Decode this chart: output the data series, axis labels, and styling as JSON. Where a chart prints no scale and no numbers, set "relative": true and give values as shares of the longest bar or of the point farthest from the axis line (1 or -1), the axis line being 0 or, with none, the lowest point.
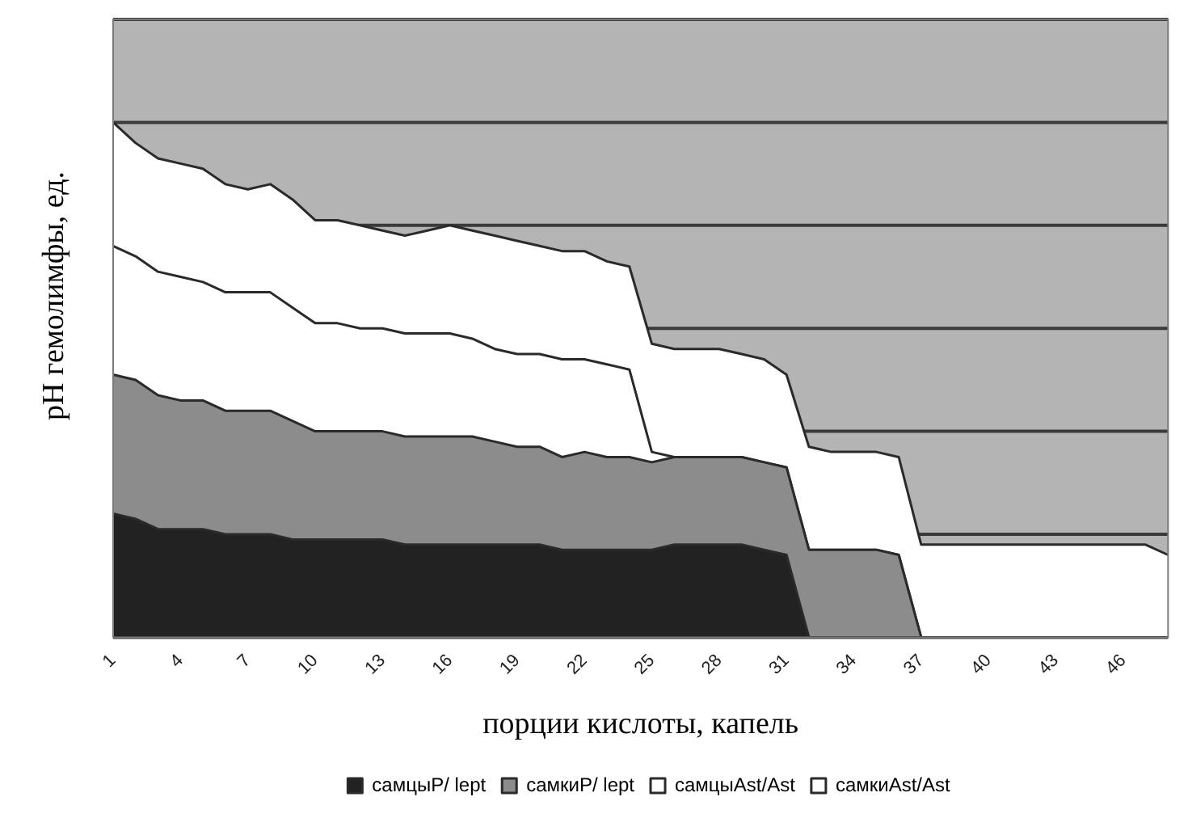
{
  "chart_data": {
    "type": "area",
    "xlabel": "порции кислоты, капель",
    "ylabel": "pH гемолимфы, ед.",
    "categories": [
      "1",
      null,
      null,
      "4",
      null,
      null,
      "7",
      null,
      null,
      "10",
      null,
      null,
      "13",
      null,
      null,
      "16",
      null,
      null,
      "19",
      null,
      null,
      "22",
      null,
      null,
      "25",
      null,
      null,
      "28",
      null,
      null,
      "31",
      null,
      null,
      "34",
      null,
      null,
      "37",
      null,
      null,
      "40",
      null,
      null,
      "43",
      null,
      null,
      "46",
      null,
      null
    ],
    "relative": true,
    "stacked": true,
    "grid": "y",
    "legend": "bottom",
    "series": [
      {
        "name": "самцыP/ lept",
        "color": "#222222",
        "values": [
          0.24,
          0.23,
          0.21,
          0.21,
          0.21,
          0.2,
          0.2,
          0.2,
          0.19,
          0.19,
          0.19,
          0.19,
          0.19,
          0.18,
          0.18,
          0.18,
          0.18,
          0.18,
          0.18,
          0.18,
          0.17,
          0.17,
          0.17,
          0.17,
          0.17,
          0.18,
          0.18,
          0.18,
          0.18,
          0.17,
          0.16,
          0,
          0,
          0,
          0,
          0,
          0,
          0,
          0,
          0,
          0,
          0,
          0,
          0,
          0,
          0,
          0,
          0
        ]
      },
      {
        "name": "самкиP/ lept",
        "color": "#8c8c8c",
        "values": [
          0.27,
          0.27,
          0.26,
          0.25,
          0.25,
          0.24,
          0.24,
          0.24,
          0.23,
          0.21,
          0.21,
          0.21,
          0.21,
          0.21,
          0.21,
          0.21,
          0.21,
          0.2,
          0.19,
          0.19,
          0.18,
          0.19,
          0.18,
          0.18,
          0.17,
          0.17,
          0.17,
          0.17,
          0.17,
          0.17,
          0.17,
          0.17,
          0.17,
          0.17,
          0.17,
          0.16,
          0,
          0,
          0,
          0,
          0,
          0,
          0,
          0,
          0,
          0,
          0,
          0
        ]
      },
      {
        "name": "самцыAst/Ast",
        "color": "#ffffff",
        "values": [
          0.25,
          0.24,
          0.24,
          0.24,
          0.23,
          0.23,
          0.23,
          0.23,
          0.22,
          0.21,
          0.21,
          0.2,
          0.2,
          0.2,
          0.2,
          0.2,
          0.19,
          0.18,
          0.18,
          0.18,
          0.19,
          0.18,
          0.18,
          0.17,
          0.02,
          0,
          0,
          0,
          0,
          0,
          0,
          0,
          0,
          0,
          0,
          0,
          0,
          0,
          0,
          0,
          0,
          0,
          0,
          0,
          0,
          0,
          0,
          0
        ]
      },
      {
        "name": "самкиAst/Ast",
        "color": "#ffffff",
        "values": [
          0.24,
          0.22,
          0.22,
          0.22,
          0.22,
          0.21,
          0.2,
          0.21,
          0.21,
          0.2,
          0.2,
          0.2,
          0.19,
          0.19,
          0.2,
          0.21,
          0.21,
          0.22,
          0.22,
          0.21,
          0.21,
          0.21,
          0.2,
          0.2,
          0.21,
          0.21,
          0.21,
          0.21,
          0.2,
          0.2,
          0.18,
          0.2,
          0.19,
          0.19,
          0.19,
          0.19,
          0.18,
          0.18,
          0.18,
          0.18,
          0.18,
          0.18,
          0.18,
          0.18,
          0.18,
          0.18,
          0.18,
          0.16
        ]
      }
    ]
  }
}
